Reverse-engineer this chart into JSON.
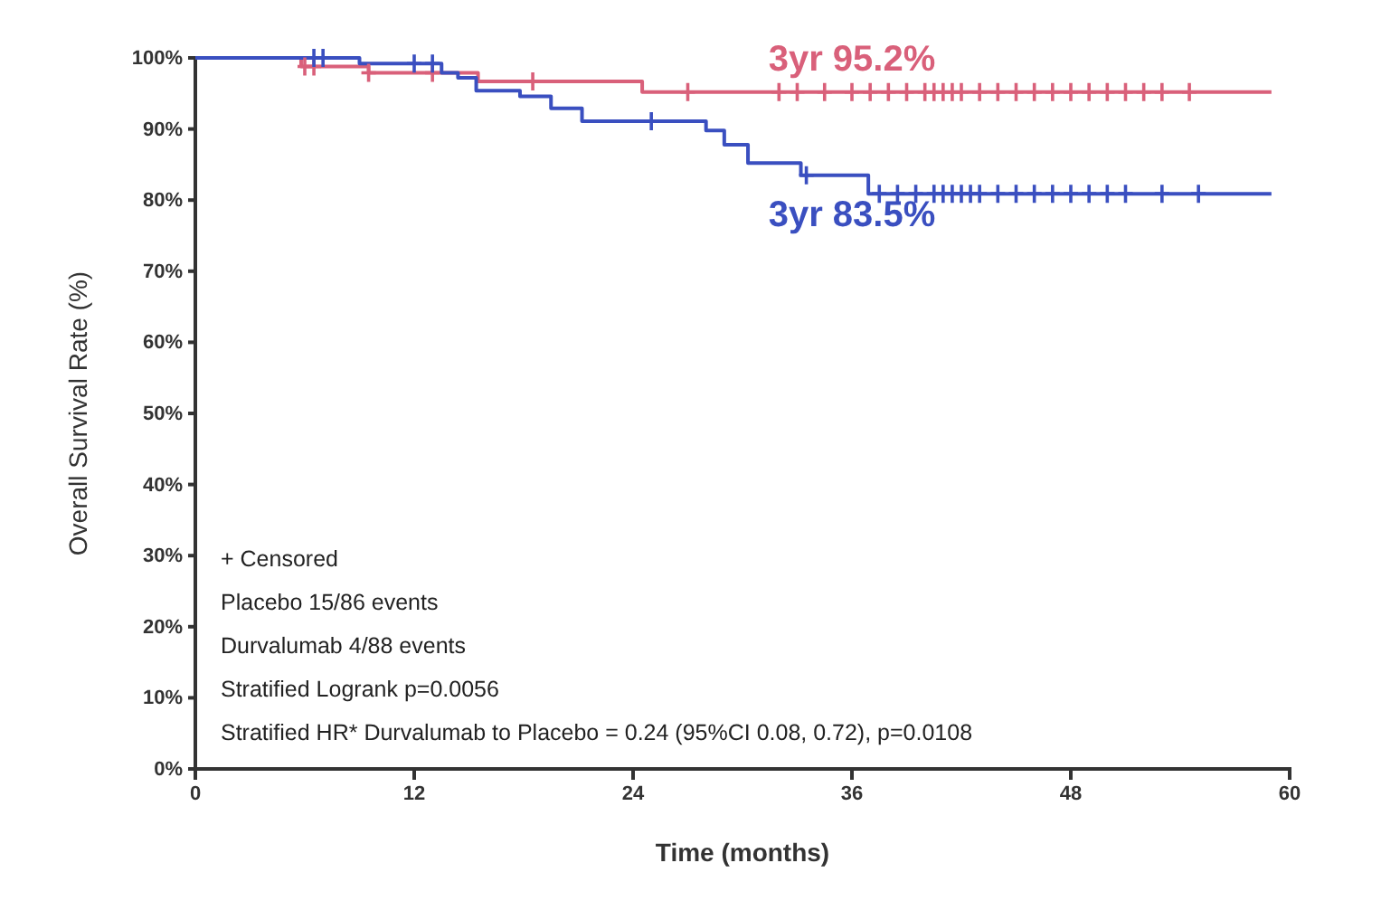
{
  "chart_data": {
    "type": "step",
    "xlabel": "Time (months)",
    "ylabel": "Overall Survival Rate (%)",
    "xlim": [
      0,
      60
    ],
    "xticks": [
      0,
      12,
      24,
      36,
      48,
      60
    ],
    "ylim": [
      0,
      100
    ],
    "yticks": [
      {
        "value": 0,
        "label": "0%"
      },
      {
        "value": 10,
        "label": "10%"
      },
      {
        "value": 20,
        "label": "20%"
      },
      {
        "value": 30,
        "label": "30%"
      },
      {
        "value": 40,
        "label": "40%"
      },
      {
        "value": 50,
        "label": "50%"
      },
      {
        "value": 60,
        "label": "60%"
      },
      {
        "value": 70,
        "label": "70%"
      },
      {
        "value": 80,
        "label": "80%"
      },
      {
        "value": 90,
        "label": "90%"
      },
      {
        "value": 100,
        "label": "100%"
      }
    ],
    "grid": false,
    "line_style": "solid",
    "series": [
      {
        "color": "#d9607a",
        "marker": "none",
        "x": [
          0,
          5.8,
          9.5,
          15.5,
          24.5,
          59
        ],
        "values": [
          100,
          98.8,
          97.9,
          96.7,
          95.2,
          95.2
        ]
      },
      {
        "color": "#3a4fc0",
        "marker": "none",
        "x": [
          0,
          9,
          13.5,
          14.4,
          15.4,
          17.8,
          19.5,
          21.2,
          28,
          29,
          30.3,
          33.2,
          36.9,
          59
        ],
        "values": [
          100,
          99.2,
          97.9,
          97.2,
          95.4,
          94.6,
          92.9,
          91.1,
          89.8,
          87.8,
          85.2,
          83.5,
          80.9,
          80.9
        ]
      },
      {
        "type": "scatter",
        "color": "#d9607a",
        "marker": "cross",
        "x": [
          6,
          6.5,
          9.5,
          13,
          18.5,
          27,
          32,
          33,
          34.5,
          36,
          37,
          38,
          39,
          40,
          40.5,
          41,
          41.5,
          42,
          43,
          44,
          45,
          46,
          47,
          48,
          49,
          50,
          51,
          52,
          53,
          54.5
        ],
        "values": [
          98.8,
          98.8,
          97.9,
          97.9,
          96.7,
          95.2,
          95.2,
          95.2,
          95.2,
          95.2,
          95.2,
          95.2,
          95.2,
          95.2,
          95.2,
          95.2,
          95.2,
          95.2,
          95.2,
          95.2,
          95.2,
          95.2,
          95.2,
          95.2,
          95.2,
          95.2,
          95.2,
          95.2,
          95.2,
          95.2
        ]
      },
      {
        "type": "scatter",
        "color": "#3a4fc0",
        "marker": "cross",
        "x": [
          6.5,
          7,
          12,
          13,
          25,
          33.5,
          37.5,
          38.5,
          39.5,
          40.5,
          41,
          41.5,
          42,
          42.5,
          43,
          44,
          45,
          46,
          47,
          48,
          49,
          50,
          51,
          53,
          55
        ],
        "values": [
          100,
          100,
          99.2,
          99.2,
          91.1,
          83.5,
          80.9,
          80.9,
          80.9,
          80.9,
          80.9,
          80.9,
          80.9,
          80.9,
          80.9,
          80.9,
          80.9,
          80.9,
          80.9,
          80.9,
          80.9,
          80.9,
          80.9,
          80.9,
          80.9
        ]
      }
    ],
    "annotations": [
      {
        "text": "3yr 95.2%",
        "x": 36,
        "y": 95.2
      },
      {
        "text": "3yr 83.5%",
        "x": 36,
        "y": 83.5
      },
      "+ Censored",
      "Placebo  15/86 events",
      "Durvalumab  4/88 events",
      "Stratified Logrank p=0.0056",
      "Stratified HR* Durvalumab to Placebo = 0.24  (95%CI 0.08, 0.72), p=0.0108"
    ]
  }
}
